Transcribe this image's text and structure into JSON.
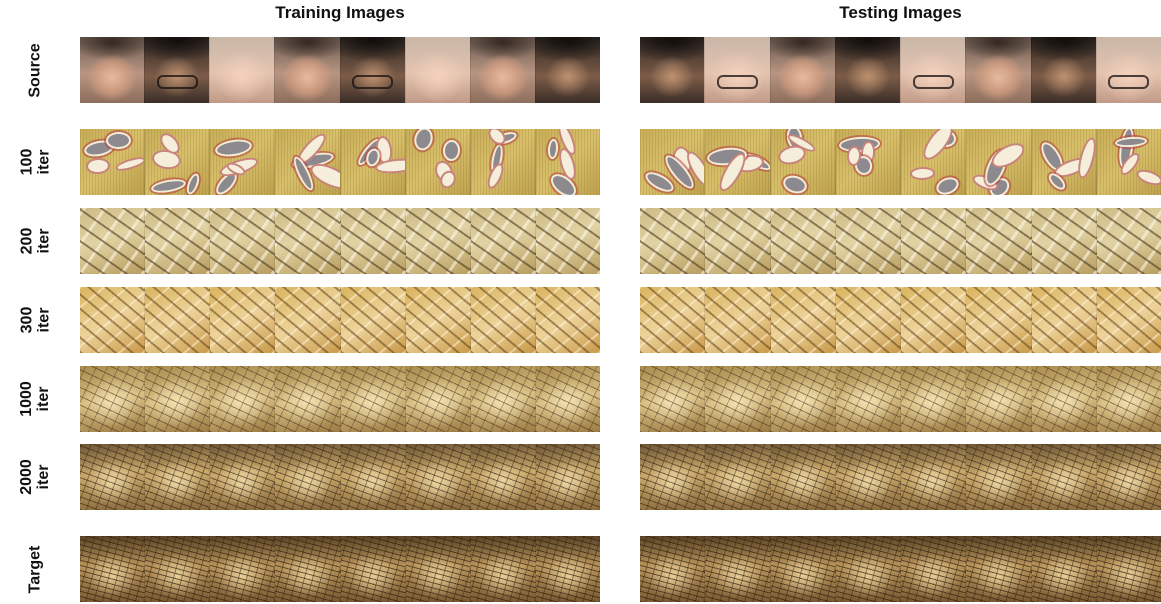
{
  "titles": {
    "training": "Training Images",
    "testing": "Testing Images"
  },
  "rows": [
    {
      "id": "source",
      "label": "Source",
      "style": "photo"
    },
    {
      "id": "iter100",
      "label": "100\niter",
      "style": "s100"
    },
    {
      "id": "iter200",
      "label": "200\niter",
      "style": "sketch"
    },
    {
      "id": "iter300",
      "label": "300\niter",
      "style": "sketch warm"
    },
    {
      "id": "iter1000",
      "label": "1000\niter",
      "style": "sketch fine"
    },
    {
      "id": "iter2000",
      "label": "2000\niter",
      "style": "sketch dense"
    },
    {
      "id": "target",
      "label": "Target",
      "style": "sketch target"
    }
  ],
  "columns_per_group": 8
}
